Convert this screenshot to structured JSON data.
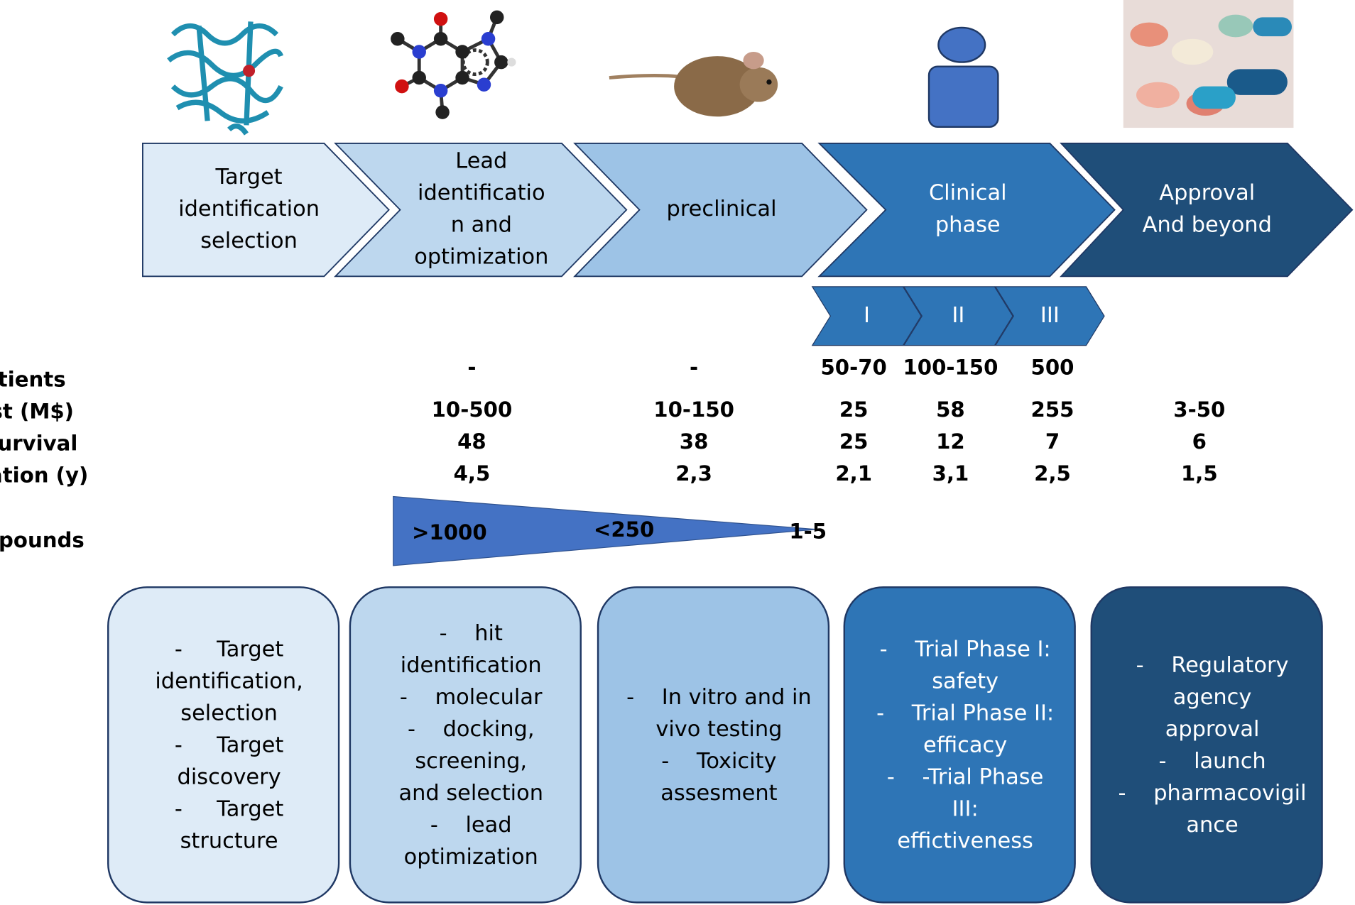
{
  "stages": [
    {
      "label": [
        "Target",
        "identification",
        "selection"
      ]
    },
    {
      "label": [
        "Lead",
        "identificatio",
        "n and",
        "optimization"
      ]
    },
    {
      "label": [
        "preclinical"
      ]
    },
    {
      "label": [
        "Clinical",
        "phase"
      ]
    },
    {
      "label": [
        "Approval",
        "And beyond"
      ]
    }
  ],
  "clinical_phases": [
    "I",
    "II",
    "III"
  ],
  "metrics": {
    "row_labels": [
      "Patients",
      "Cost (M$)",
      "% survival",
      "Duration (y)"
    ],
    "columns": [
      {
        "patients": "-",
        "cost": "10-500",
        "survival": "48",
        "duration": "4,5"
      },
      {
        "patients": "-",
        "cost": "10-150",
        "survival": "38",
        "duration": "2,3"
      },
      {
        "patients": "50-70",
        "cost": "25",
        "survival": "25",
        "duration": "2,1"
      },
      {
        "patients": "100-150",
        "cost": "58",
        "survival": "12",
        "duration": "3,1"
      },
      {
        "patients": "500",
        "cost": "255",
        "survival": "7",
        "duration": "2,5"
      },
      {
        "cost": "3-50",
        "survival": "6",
        "duration": "1,5"
      }
    ]
  },
  "compounds": {
    "label": "compounds",
    "values": [
      ">1000",
      "<250",
      "1-5"
    ]
  },
  "boxes": [
    {
      "lines": [
        "-     Target",
        "identification,",
        "selection",
        "-     Target",
        "discovery",
        "-     Target",
        "structure"
      ]
    },
    {
      "lines": [
        "-    hit",
        "identification",
        "-    molecular",
        "-    docking,",
        "screening,",
        "and selection",
        "-    lead",
        "optimization"
      ]
    },
    {
      "lines": [
        "-    In vitro and in",
        "vivo testing",
        "-    Toxicity",
        "assesment"
      ]
    },
    {
      "lines": [
        "-    Trial Phase I:",
        "safety",
        "-    Trial Phase II:",
        "efficacy",
        "-    -Trial Phase",
        "III:",
        "effictiveness"
      ]
    },
    {
      "lines": [
        "-    Regulatory",
        "agency",
        "approval",
        "-    launch",
        "-    pharmacovigil",
        "ance"
      ]
    }
  ]
}
